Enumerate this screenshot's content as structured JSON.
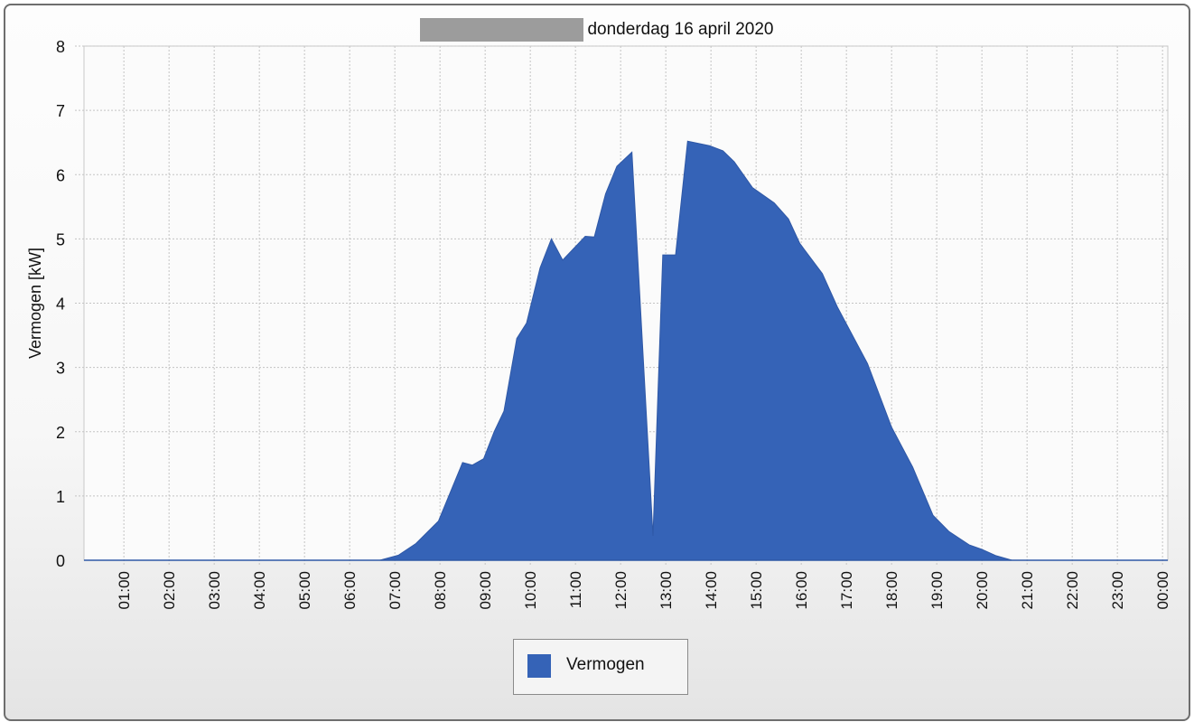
{
  "chart_data": {
    "type": "area",
    "title": "donderdag 16 april 2020",
    "title_redacted_prefix": true,
    "xlabel": "",
    "ylabel": "Vermogen [kW]",
    "ylim": [
      0,
      8
    ],
    "yticks": [
      0,
      1,
      2,
      3,
      4,
      5,
      6,
      7,
      8
    ],
    "xlim": [
      "00:07",
      "24:07"
    ],
    "xticks": [
      "01:00",
      "02:00",
      "03:00",
      "04:00",
      "05:00",
      "06:00",
      "07:00",
      "08:00",
      "09:00",
      "10:00",
      "11:00",
      "12:00",
      "13:00",
      "14:00",
      "15:00",
      "16:00",
      "17:00",
      "18:00",
      "19:00",
      "20:00",
      "21:00",
      "22:00",
      "23:00",
      "00:00"
    ],
    "grid": true,
    "legend_placement": "bottom",
    "series": [
      {
        "name": "Vermogen",
        "color": "#3563b7",
        "x": [
          "00:12",
          "06:40",
          "07:05",
          "07:28",
          "07:58",
          "08:30",
          "08:43",
          "08:58",
          "09:12",
          "09:25",
          "09:42",
          "09:55",
          "10:13",
          "10:28",
          "10:43",
          "11:13",
          "11:25",
          "11:40",
          "11:55",
          "12:15",
          "12:43",
          "12:56",
          "13:13",
          "13:29",
          "13:58",
          "14:16",
          "14:31",
          "14:55",
          "15:24",
          "15:43",
          "15:58",
          "16:28",
          "16:48",
          "17:28",
          "18:00",
          "18:28",
          "18:55",
          "19:16",
          "19:43",
          "20:00",
          "20:19",
          "20:40",
          "24:00"
        ],
        "y": [
          0,
          0,
          0.08,
          0.26,
          0.61,
          1.52,
          1.48,
          1.58,
          2.0,
          2.32,
          3.45,
          3.69,
          4.55,
          5.0,
          4.67,
          5.04,
          5.03,
          5.7,
          6.13,
          6.35,
          0.38,
          4.75,
          4.75,
          6.52,
          6.45,
          6.37,
          6.2,
          5.8,
          5.56,
          5.31,
          4.93,
          4.46,
          3.94,
          3.06,
          2.07,
          1.45,
          0.7,
          0.45,
          0.24,
          0.17,
          0.07,
          0,
          0
        ]
      }
    ]
  }
}
